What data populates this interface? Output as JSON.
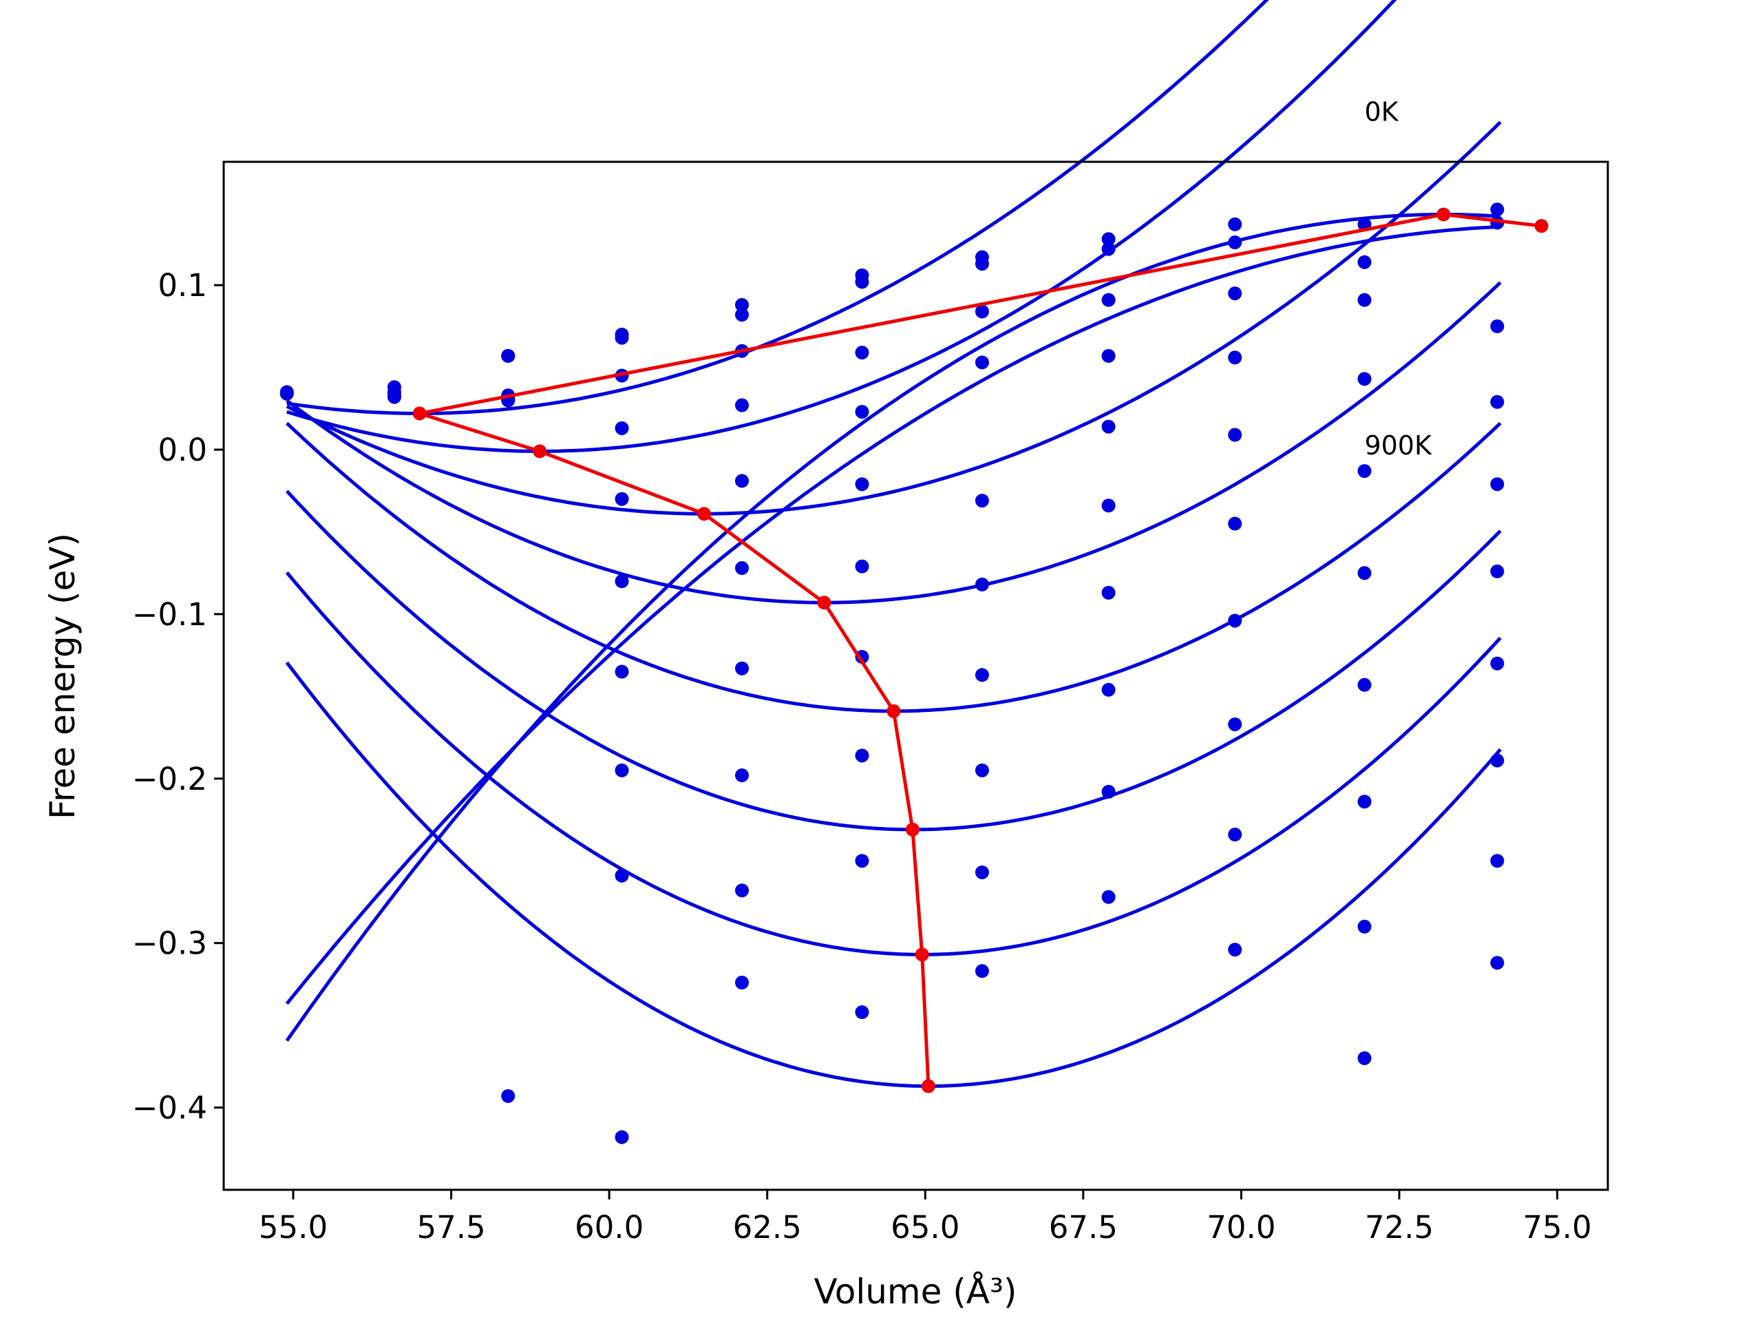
{
  "chart_data": {
    "type": "line",
    "xlabel": "Volume (Å³)",
    "ylabel": "Free energy (eV)",
    "xlim": [
      53.9,
      75.8
    ],
    "ylim": [
      -0.45,
      0.175
    ],
    "x_ticks": [
      55.0,
      57.5,
      60.0,
      62.5,
      65.0,
      67.5,
      70.0,
      72.5,
      75.0
    ],
    "x_tick_labels": [
      "55.0",
      "57.5",
      "60.0",
      "62.5",
      "65.0",
      "67.5",
      "70.0",
      "72.5",
      "75.0"
    ],
    "y_ticks": [
      -0.4,
      -0.3,
      -0.2,
      -0.1,
      0.0,
      0.1
    ],
    "y_tick_labels": [
      "−0.4",
      "−0.3",
      "−0.2",
      "−0.1",
      "0.0",
      "0.1"
    ],
    "annotations": [
      {
        "text": "0K",
        "x": 71.95,
        "y": 0.2
      },
      {
        "text": "900K",
        "x": 71.95,
        "y": -0.003
      }
    ],
    "grid": false,
    "colors": {
      "fit": "#0000dd",
      "points": "#0000dd",
      "minimum": "#ee0000"
    },
    "data_points_x": [
      54.9,
      56.6,
      58.4,
      60.2,
      62.1,
      64.0,
      65.9,
      67.9,
      69.9,
      71.95,
      74.05
    ],
    "curve_x_range": [
      54.9,
      74.1
    ],
    "series": [
      {
        "fit": {
          "a": -0.0015,
          "v0": 73.2,
          "e0": 0.143
        },
        "points": [
          0.035,
          0.038,
          0.057,
          0.07,
          0.088,
          0.106,
          0.117,
          0.128,
          0.137,
          0.137,
          0.146
        ]
      },
      {
        "fit": {
          "a": -0.0012,
          "v0": 74.75,
          "e0": 0.136
        },
        "points": [
          0.034,
          0.035,
          0.057,
          0.068,
          0.082,
          0.102,
          0.113,
          0.122,
          0.126,
          0.114,
          0.138
        ]
      },
      {
        "fit": {
          "a": 0.0014,
          "v0": 57.0,
          "e0": 0.022
        },
        "points": [
          0.033,
          0.033,
          0.045,
          0.06,
          0.059,
          0.084,
          0.091,
          0.095,
          0.091,
          0.075
        ]
      },
      {
        "fit": {
          "a": 0.0015,
          "v0": 58.9,
          "e0": -0.001
        },
        "points": [
          0.032,
          0.032,
          0.013,
          0.027,
          0.023,
          0.053,
          0.057,
          0.056,
          0.043,
          0.029
        ]
      },
      {
        "fit": {
          "a": 0.0015,
          "v0": 61.5,
          "e0": -0.039
        },
        "points": [
          0.031,
          -0.03,
          -0.019,
          -0.021,
          -0.031,
          0.014,
          0.009,
          -0.013,
          -0.021
        ]
      },
      {
        "fit": {
          "a": 0.0017,
          "v0": 63.4,
          "e0": -0.093
        },
        "points": [
          0.03,
          -0.08,
          -0.072,
          -0.071,
          -0.082,
          -0.034,
          -0.045,
          -0.075,
          -0.074
        ]
      },
      {
        "fit": {
          "a": 0.0019,
          "v0": 64.5,
          "e0": -0.159
        },
        "points": [
          0.03,
          -0.135,
          -0.133,
          -0.126,
          -0.137,
          -0.087,
          -0.104,
          -0.143,
          -0.13
        ]
      },
      {
        "fit": {
          "a": 0.0021,
          "v0": 64.8,
          "e0": -0.231
        },
        "points": [
          -0.195,
          -0.198,
          -0.186,
          -0.195,
          -0.146,
          -0.167,
          -0.214,
          -0.189
        ]
      },
      {
        "fit": {
          "a": 0.0023,
          "v0": 64.95,
          "e0": -0.307
        },
        "points": [
          -0.259,
          -0.268,
          -0.25,
          -0.257,
          -0.208,
          -0.234,
          -0.29,
          -0.25
        ]
      },
      {
        "fit": {
          "a": 0.0025,
          "v0": 65.05,
          "e0": -0.387
        },
        "points": [
          -0.324,
          -0.342,
          -0.317,
          -0.272,
          -0.304,
          -0.37,
          -0.312
        ]
      }
    ],
    "extra_points": [
      [
        58.4,
        -0.393
      ],
      [
        60.2,
        -0.418
      ]
    ],
    "minimum_line": {
      "x": [
        74.75,
        73.2,
        57.0,
        58.9,
        61.5,
        63.4,
        64.5,
        64.8,
        64.95,
        65.05
      ],
      "y": [
        0.136,
        0.143,
        0.022,
        -0.001,
        -0.039,
        -0.093,
        -0.159,
        -0.231,
        -0.307,
        -0.387
      ]
    }
  }
}
